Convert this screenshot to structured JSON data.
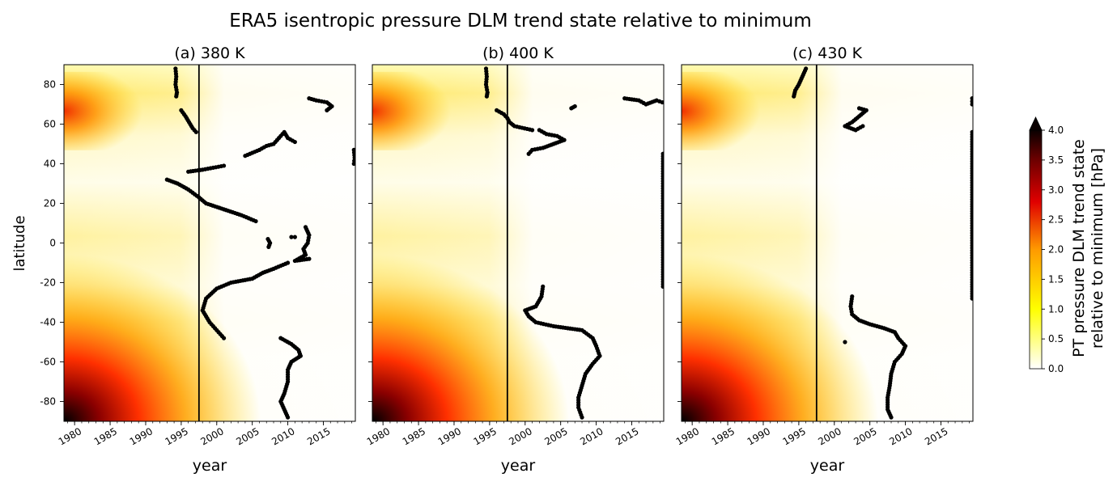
{
  "figure": {
    "suptitle": "ERA5 isentropic pressure DLM trend state relative to minimum"
  },
  "chart_data": {
    "type": "heatmap",
    "ylabel": "latitude",
    "xlabel": "year",
    "xlim": [
      1978.5,
      2019.5
    ],
    "ylim": [
      -90,
      90
    ],
    "xticks": [
      1980,
      1985,
      1990,
      1995,
      2000,
      2005,
      2010,
      2015
    ],
    "yticks": [
      -80,
      -60,
      -40,
      -20,
      0,
      20,
      40,
      60,
      80
    ],
    "vertical_line_year": 1997.5,
    "colorbar": {
      "label_line1": "PT pressure DLM trend state",
      "label_line2": "relative to minimum [hPa]",
      "min": 0.0,
      "max": 4.0,
      "extend": "max",
      "ticks": [
        "0.0",
        "0.5",
        "1.0",
        "1.5",
        "2.0",
        "2.5",
        "3.0",
        "3.5",
        "4.0"
      ],
      "colormap": "hot_r"
    },
    "panels": [
      {
        "title": "(a) 380 K",
        "minimum_curves": [
          [
            [
              1994.2,
              88
            ],
            [
              1994.3,
              84
            ],
            [
              1994.2,
              80
            ],
            [
              1994.4,
              76
            ],
            [
              1994.3,
              74
            ]
          ],
          [
            [
              1995.0,
              67
            ],
            [
              1995.6,
              64
            ],
            [
              1996.1,
              61
            ],
            [
              1996.6,
              58
            ],
            [
              1997.1,
              56
            ]
          ],
          [
            [
              1993.0,
              32
            ],
            [
              1994.5,
              30
            ],
            [
              1996.0,
              27
            ],
            [
              1997.5,
              23
            ],
            [
              1998.5,
              20
            ],
            [
              2001.0,
              17
            ],
            [
              2003.5,
              14
            ],
            [
              2005.5,
              11
            ]
          ],
          [
            [
              1996.0,
              36
            ],
            [
              1998.0,
              37
            ],
            [
              1999.5,
              38
            ],
            [
              2001.0,
              39
            ]
          ],
          [
            [
              2004.0,
              44
            ],
            [
              2006.0,
              47
            ],
            [
              2007.0,
              49
            ],
            [
              2008.0,
              50
            ],
            [
              2009.0,
              54
            ],
            [
              2009.5,
              56
            ],
            [
              2010.0,
              53
            ],
            [
              2011.0,
              51
            ]
          ],
          [
            [
              2007.2,
              2
            ],
            [
              2007.5,
              0
            ],
            [
              2007.3,
              -2
            ]
          ],
          [
            [
              2010.0,
              -10
            ],
            [
              2008.0,
              -13
            ],
            [
              2006.5,
              -15
            ],
            [
              2005.0,
              -18
            ],
            [
              2002.0,
              -20
            ],
            [
              2000.0,
              -23
            ],
            [
              1998.5,
              -28
            ],
            [
              1998.0,
              -34
            ],
            [
              1999.0,
              -40
            ],
            [
              2000.0,
              -44
            ],
            [
              2001.0,
              -48
            ]
          ],
          [
            [
              2009.0,
              -48
            ],
            [
              2010.5,
              -51
            ],
            [
              2011.5,
              -54
            ],
            [
              2011.8,
              -57
            ],
            [
              2010.5,
              -60
            ],
            [
              2010.0,
              -64
            ],
            [
              2010.0,
              -70
            ],
            [
              2009.5,
              -76
            ],
            [
              2009.0,
              -80
            ],
            [
              2009.5,
              -84
            ],
            [
              2010.0,
              -88
            ]
          ],
          [
            [
              2012.5,
              8
            ],
            [
              2013.0,
              4
            ],
            [
              2012.8,
              0
            ],
            [
              2012.2,
              -3
            ],
            [
              2012.5,
              -6
            ],
            [
              2011.0,
              -9
            ],
            [
              2013.0,
              -8
            ]
          ],
          [
            [
              2010.5,
              3
            ],
            [
              2011.0,
              3
            ]
          ],
          [
            [
              2013.0,
              73
            ],
            [
              2014.0,
              72
            ],
            [
              2015.5,
              71
            ],
            [
              2016.2,
              69
            ],
            [
              2015.5,
              67
            ]
          ],
          [
            [
              2019.3,
              47
            ],
            [
              2019.4,
              43
            ],
            [
              2019.3,
              40
            ]
          ]
        ]
      },
      {
        "title": "(b) 400 K",
        "minimum_curves": [
          [
            [
              1994.5,
              88
            ],
            [
              1994.6,
              84
            ],
            [
              1994.5,
              80
            ],
            [
              1994.7,
              76
            ],
            [
              1994.6,
              74
            ]
          ],
          [
            [
              1996.0,
              67
            ],
            [
              1997.0,
              65
            ],
            [
              1997.5,
              63
            ],
            [
              1997.8,
              61
            ],
            [
              1998.5,
              59
            ],
            [
              2001.0,
              57
            ]
          ],
          [
            [
              2002.0,
              57
            ],
            [
              2003.0,
              55
            ],
            [
              2004.5,
              54
            ],
            [
              2005.5,
              52
            ],
            [
              2004.0,
              50
            ],
            [
              2002.5,
              48
            ],
            [
              2001.0,
              47
            ],
            [
              2000.5,
              45
            ]
          ],
          [
            [
              2006.5,
              68
            ],
            [
              2007.0,
              69
            ]
          ],
          [
            [
              2014.0,
              73
            ],
            [
              2016.0,
              72
            ],
            [
              2017.0,
              70
            ],
            [
              2018.5,
              72
            ],
            [
              2019.3,
              71
            ]
          ],
          [
            [
              2019.4,
              45
            ],
            [
              2019.4,
              20
            ],
            [
              2019.4,
              0
            ],
            [
              2019.4,
              -22
            ]
          ],
          [
            [
              2002.5,
              -22
            ],
            [
              2002.3,
              -27
            ],
            [
              2001.5,
              -32
            ],
            [
              2000.0,
              -34
            ],
            [
              2000.5,
              -37
            ],
            [
              2001.5,
              -40
            ],
            [
              2004.0,
              -42
            ],
            [
              2006.0,
              -43
            ],
            [
              2008.0,
              -44
            ],
            [
              2009.5,
              -48
            ],
            [
              2010.0,
              -52
            ],
            [
              2010.5,
              -57
            ],
            [
              2009.5,
              -61
            ],
            [
              2008.5,
              -66
            ],
            [
              2008.0,
              -72
            ],
            [
              2007.5,
              -78
            ],
            [
              2007.5,
              -83
            ],
            [
              2008.0,
              -88
            ]
          ]
        ]
      },
      {
        "title": "(c) 430 K",
        "minimum_curves": [
          [
            [
              1996.0,
              88
            ],
            [
              1995.5,
              84
            ],
            [
              1995.0,
              80
            ],
            [
              1994.5,
              77
            ],
            [
              1994.3,
              74
            ]
          ],
          [
            [
              2003.5,
              68
            ],
            [
              2004.5,
              67
            ],
            [
              2003.5,
              64
            ],
            [
              2002.5,
              61
            ],
            [
              2001.5,
              59
            ],
            [
              2003.0,
              57
            ],
            [
              2004.0,
              59
            ]
          ],
          [
            [
              2019.4,
              73
            ],
            [
              2019.4,
              70
            ]
          ],
          [
            [
              2019.4,
              56
            ],
            [
              2019.4,
              40
            ],
            [
              2019.4,
              10
            ],
            [
              2019.4,
              -15
            ],
            [
              2019.4,
              -28
            ]
          ],
          [
            [
              2001.5,
              -50
            ]
          ],
          [
            [
              2002.5,
              -27
            ],
            [
              2002.3,
              -32
            ],
            [
              2002.5,
              -36
            ],
            [
              2003.5,
              -39
            ],
            [
              2005.0,
              -41
            ],
            [
              2007.0,
              -43
            ],
            [
              2008.5,
              -45
            ],
            [
              2009.0,
              -48
            ],
            [
              2010.0,
              -52
            ],
            [
              2009.5,
              -56
            ],
            [
              2008.5,
              -60
            ],
            [
              2008.0,
              -66
            ],
            [
              2007.8,
              -72
            ],
            [
              2007.5,
              -78
            ],
            [
              2007.5,
              -84
            ],
            [
              2008.0,
              -88
            ]
          ]
        ]
      }
    ]
  }
}
